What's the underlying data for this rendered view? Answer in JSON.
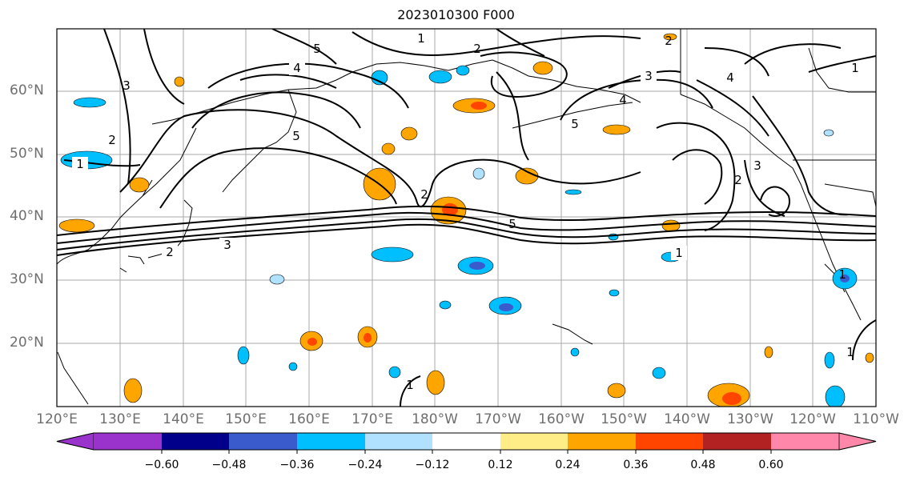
{
  "title": "2023010300 F000",
  "map": {
    "lat_labels": [
      "60°N",
      "50°N",
      "40°N",
      "30°N",
      "20°N"
    ],
    "lon_labels": [
      "120°E",
      "130°E",
      "140°E",
      "150°E",
      "160°E",
      "170°E",
      "180°W",
      "170°W",
      "160°W",
      "150°W",
      "140°W",
      "130°W",
      "120°W",
      "110°W"
    ],
    "contour_labels": [
      "1",
      "2",
      "3",
      "4",
      "5"
    ],
    "grid": true
  },
  "colorbar": {
    "tick_labels": [
      "−0.60",
      "−0.48",
      "−0.36",
      "−0.24",
      "−0.12",
      "0.12",
      "0.24",
      "0.36",
      "0.48",
      "0.60"
    ],
    "colors": [
      "#9933cc",
      "#00008b",
      "#3a5bcc",
      "#00bfff",
      "#b0e2ff",
      "#ffffff",
      "#ffee88",
      "#ffa500",
      "#ff4500",
      "#b22222",
      "#ff88aa"
    ],
    "extend": "both"
  }
}
